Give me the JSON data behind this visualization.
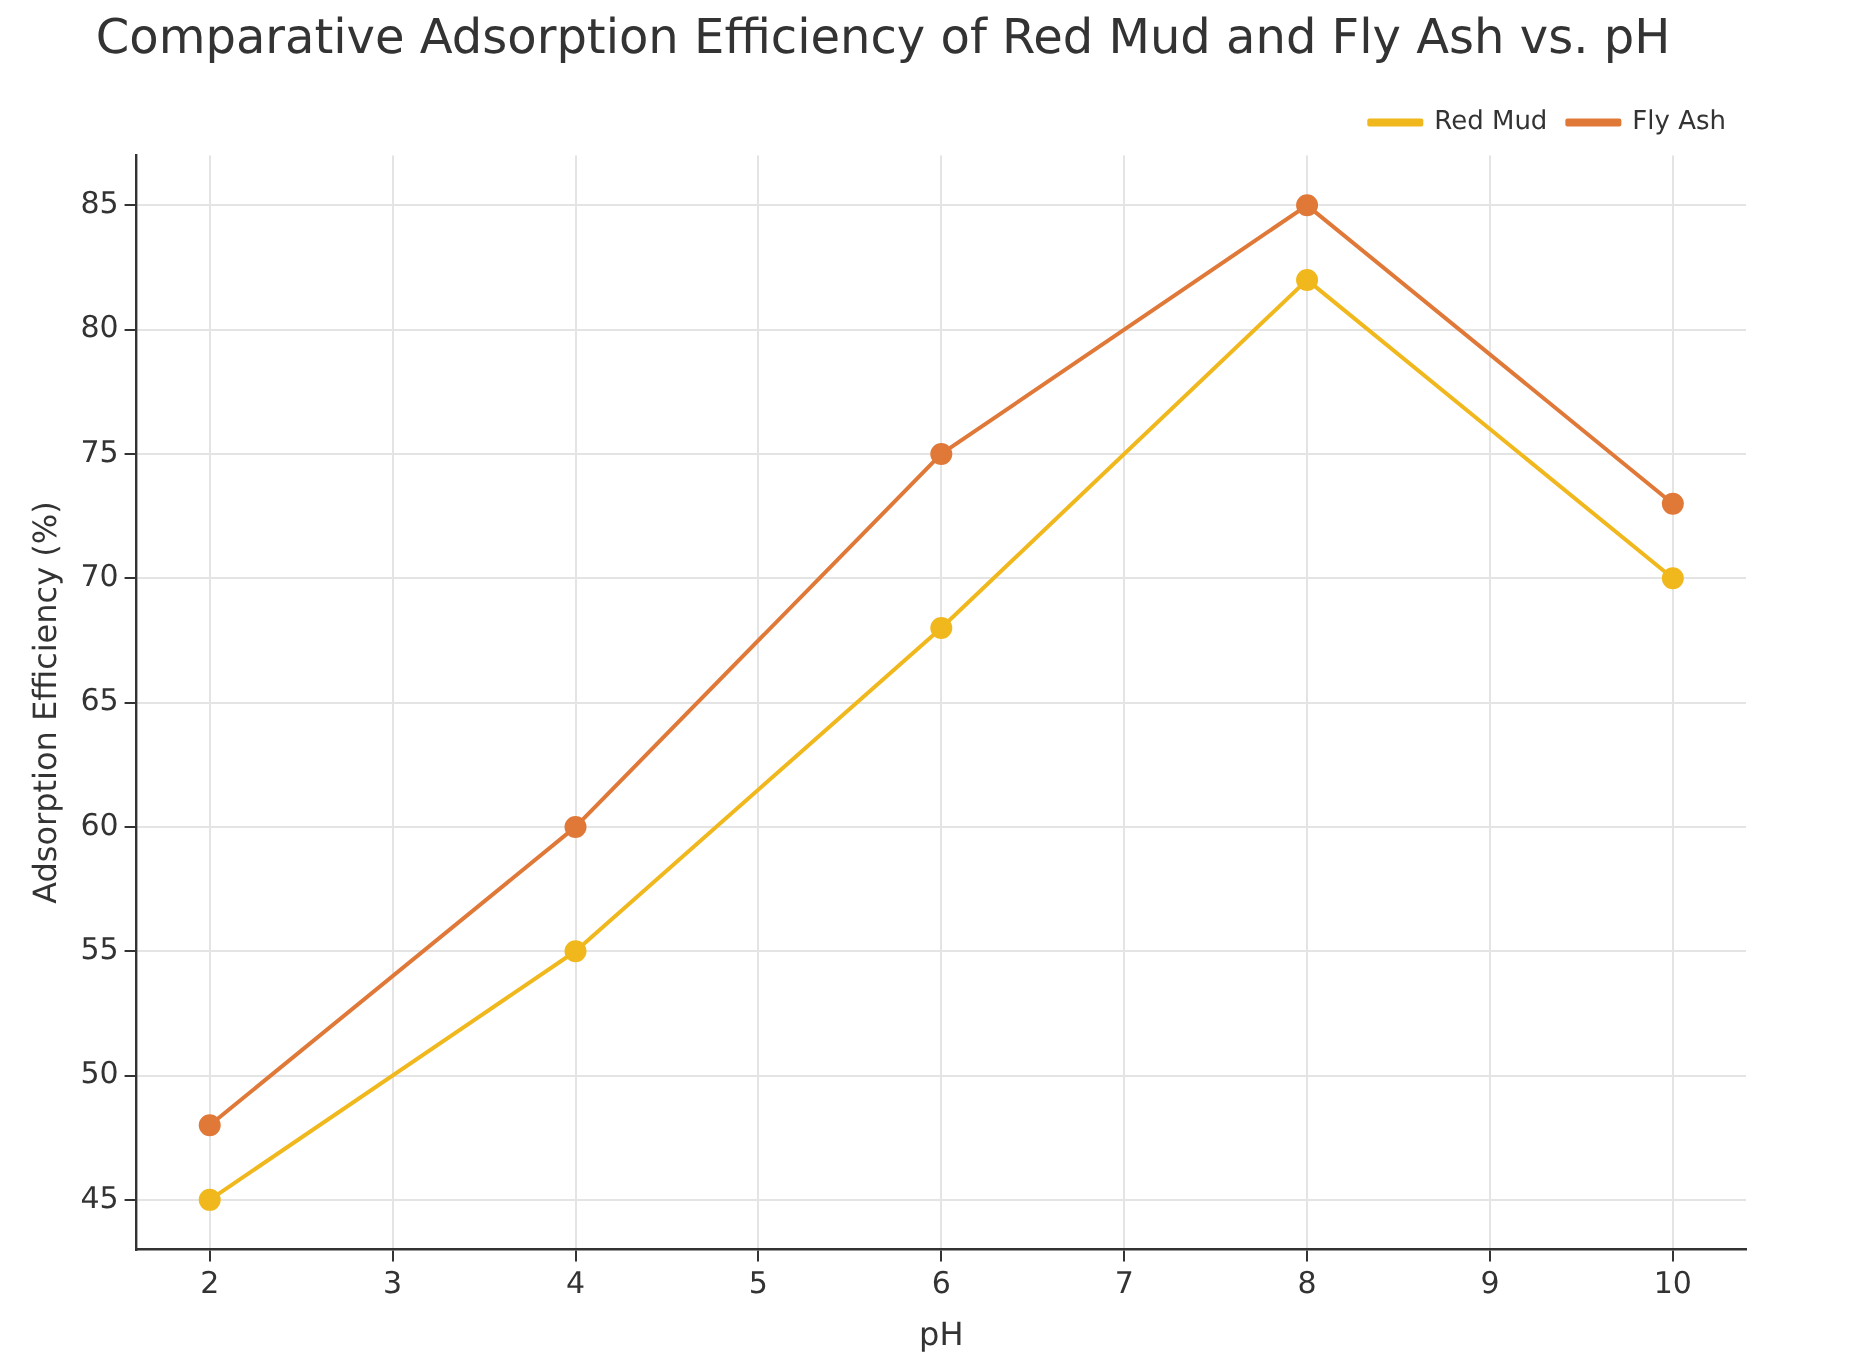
{
  "chart_data": {
    "type": "line",
    "title": "Comparative Adsorption Efficiency of Red Mud and Fly Ash vs. pH",
    "xlabel": "pH",
    "ylabel": "Adsorption Efficiency (%)",
    "x": [
      2,
      4,
      6,
      8,
      10
    ],
    "series": [
      {
        "name": "Red Mud",
        "color": "#f0b81c",
        "values": [
          45,
          55,
          68,
          82,
          70
        ]
      },
      {
        "name": "Fly Ash",
        "color": "#e07838",
        "values": [
          48,
          60,
          75,
          85,
          73
        ]
      }
    ],
    "xlim": [
      1.6,
      10.4
    ],
    "xticks": [
      2,
      3,
      4,
      5,
      6,
      7,
      8,
      9,
      10
    ],
    "ylim": [
      43,
      87
    ],
    "yticks": [
      45,
      50,
      55,
      60,
      65,
      70,
      75,
      80,
      85
    ],
    "grid": true,
    "legend": "top right",
    "marker": "circle",
    "line_style": "solid"
  }
}
